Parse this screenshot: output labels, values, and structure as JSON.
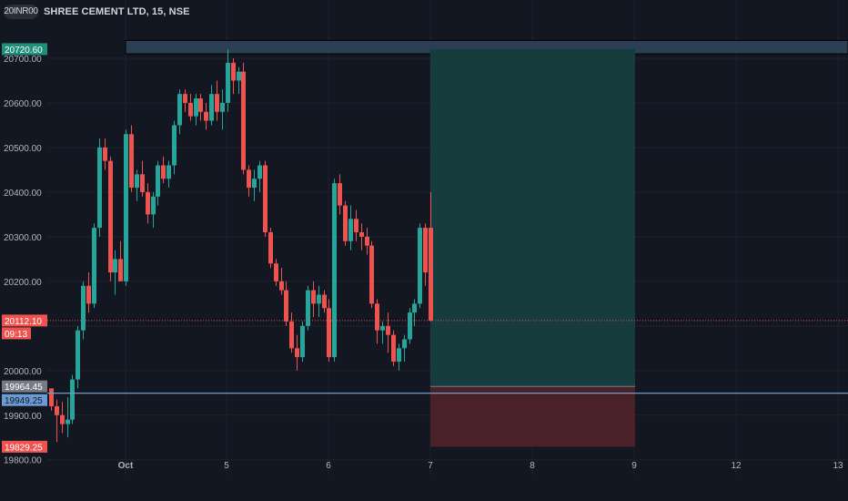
{
  "header": {
    "symbol_icon": "20INR00",
    "title": "SHREE CEMENT LTD, 15, NSE"
  },
  "colors": {
    "background": "#131722",
    "up": "#26a69a",
    "down": "#ef5350",
    "grid": "#1e222d",
    "axis_text": "#b2b5be",
    "profit_zone": "#163c3e",
    "loss_zone": "#4a2127",
    "range_box": "#2b3e53",
    "support_line": "#6a9cd3",
    "price_line": "#ef5350"
  },
  "axis": {
    "y_ticks": [
      "20700.00",
      "20600.00",
      "20500.00",
      "20400.00",
      "20300.00",
      "20200.00",
      "20000.00",
      "19900.00",
      "19800.00"
    ],
    "x_ticks": [
      {
        "label": "Oct",
        "bold": true
      },
      {
        "label": "5"
      },
      {
        "label": "6"
      },
      {
        "label": "7"
      },
      {
        "label": "8"
      },
      {
        "label": "9"
      },
      {
        "label": "12"
      },
      {
        "label": "13"
      }
    ]
  },
  "price_labels": [
    {
      "text": "20720.60",
      "kind": "target"
    },
    {
      "text": "20112.10",
      "kind": "last"
    },
    {
      "text": "09:13",
      "kind": "countdown"
    },
    {
      "text": "19964.45",
      "kind": "entry"
    },
    {
      "text": "19949.25",
      "kind": "support"
    },
    {
      "text": "19829.25",
      "kind": "stop"
    }
  ],
  "chart_data": {
    "type": "candlestick",
    "title": "SHREE CEMENT LTD, 15, NSE",
    "ylim": [
      19745,
      20760
    ],
    "x_axis": [
      "Oct",
      "5",
      "6",
      "7",
      "8",
      "9",
      "12",
      "13"
    ],
    "last_price": 20112.1,
    "countdown": "09:13",
    "support_line": 19949.25,
    "long_position": {
      "entry": 19964.45,
      "target": 20720.6,
      "stop": 19829.25
    },
    "range_box": {
      "top": 20740,
      "bottom": 20710
    },
    "candles": [
      [
        19960,
        19960,
        19910,
        19920
      ],
      [
        19920,
        19935,
        19840,
        19900
      ],
      [
        19900,
        19930,
        19860,
        19880
      ],
      [
        19880,
        19940,
        19850,
        19890
      ],
      [
        19890,
        19990,
        19880,
        19980
      ],
      [
        19980,
        20100,
        19960,
        20090
      ],
      [
        20090,
        20200,
        20070,
        20190
      ],
      [
        20190,
        20220,
        20130,
        20150
      ],
      [
        20150,
        20330,
        20140,
        20320
      ],
      [
        20320,
        20520,
        20300,
        20500
      ],
      [
        20500,
        20520,
        20450,
        20470
      ],
      [
        20470,
        20480,
        20200,
        20220
      ],
      [
        20220,
        20270,
        20170,
        20250
      ],
      [
        20250,
        20290,
        20210,
        20200
      ],
      [
        20200,
        20540,
        20190,
        20530
      ],
      [
        20530,
        20550,
        20400,
        20410
      ],
      [
        20410,
        20450,
        20380,
        20440
      ],
      [
        20440,
        20470,
        20390,
        20400
      ],
      [
        20400,
        20420,
        20330,
        20350
      ],
      [
        20350,
        20400,
        20320,
        20390
      ],
      [
        20390,
        20470,
        20370,
        20460
      ],
      [
        20460,
        20480,
        20420,
        20430
      ],
      [
        20430,
        20470,
        20410,
        20460
      ],
      [
        20460,
        20560,
        20440,
        20550
      ],
      [
        20550,
        20630,
        20530,
        20620
      ],
      [
        20620,
        20630,
        20580,
        20600
      ],
      [
        20600,
        20620,
        20560,
        20570
      ],
      [
        20570,
        20620,
        20550,
        20610
      ],
      [
        20610,
        20620,
        20560,
        20580
      ],
      [
        20580,
        20600,
        20540,
        20560
      ],
      [
        20560,
        20640,
        20550,
        20620
      ],
      [
        20620,
        20650,
        20560,
        20580
      ],
      [
        20580,
        20630,
        20540,
        20600
      ],
      [
        20600,
        20720,
        20580,
        20690
      ],
      [
        20690,
        20700,
        20620,
        20650
      ],
      [
        20650,
        20680,
        20620,
        20670
      ],
      [
        20670,
        20690,
        20440,
        20450
      ],
      [
        20450,
        20460,
        20390,
        20410
      ],
      [
        20410,
        20450,
        20380,
        20430
      ],
      [
        20430,
        20470,
        20400,
        20460
      ],
      [
        20460,
        20470,
        20300,
        20310
      ],
      [
        20310,
        20320,
        20230,
        20240
      ],
      [
        20240,
        20250,
        20190,
        20200
      ],
      [
        20200,
        20230,
        20170,
        20180
      ],
      [
        20180,
        20200,
        20100,
        20110
      ],
      [
        20110,
        20130,
        20040,
        20050
      ],
      [
        20050,
        20080,
        20000,
        20030
      ],
      [
        20030,
        20110,
        20020,
        20100
      ],
      [
        20100,
        20190,
        20090,
        20180
      ],
      [
        20180,
        20200,
        20120,
        20150
      ],
      [
        20150,
        20190,
        20120,
        20170
      ],
      [
        20170,
        20180,
        20130,
        20140
      ],
      [
        20140,
        20160,
        20020,
        20030
      ],
      [
        20030,
        20430,
        20020,
        20420
      ],
      [
        20420,
        20440,
        20350,
        20370
      ],
      [
        20370,
        20380,
        20280,
        20290
      ],
      [
        20290,
        20370,
        20270,
        20340
      ],
      [
        20340,
        20360,
        20290,
        20310
      ],
      [
        20310,
        20330,
        20270,
        20300
      ],
      [
        20300,
        20320,
        20260,
        20280
      ],
      [
        20280,
        20290,
        20140,
        20150
      ],
      [
        20150,
        20160,
        20060,
        20090
      ],
      [
        20090,
        20110,
        20060,
        20100
      ],
      [
        20100,
        20130,
        20040,
        20080
      ],
      [
        20080,
        20090,
        20010,
        20020
      ],
      [
        20020,
        20060,
        20000,
        20050
      ],
      [
        20050,
        20080,
        20020,
        20070
      ],
      [
        20070,
        20140,
        20060,
        20130
      ],
      [
        20130,
        20160,
        20100,
        20150
      ],
      [
        20150,
        20330,
        20140,
        20320
      ],
      [
        20320,
        20330,
        20190,
        20220
      ],
      [
        20320,
        20400,
        20110,
        20112.1
      ]
    ]
  }
}
